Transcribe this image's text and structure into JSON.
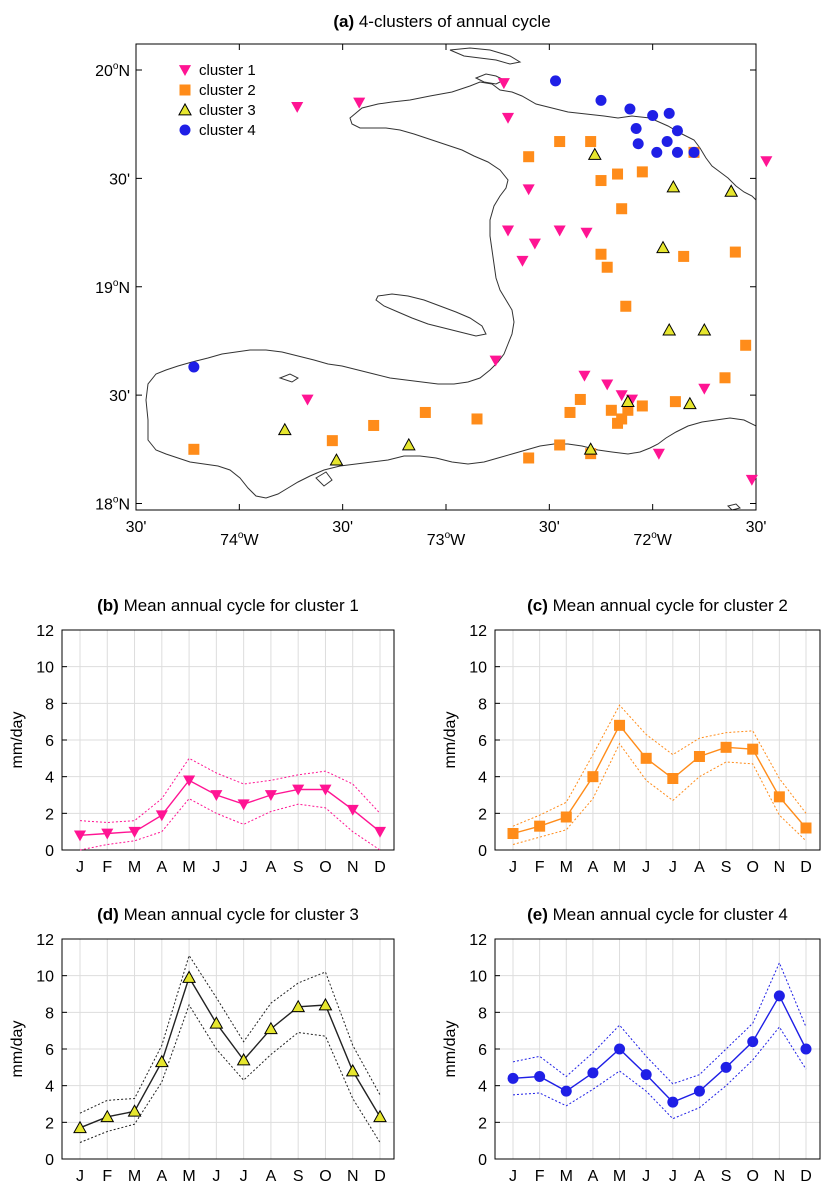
{
  "map": {
    "panel_label": "(a)",
    "title": "4-clusters of annual cycle",
    "lat_ticks": [
      {
        "lat": 20.0,
        "deg": "20",
        "suffix": "N"
      },
      {
        "lat": 19.5,
        "label": "30'"
      },
      {
        "lat": 19.0,
        "deg": "19",
        "suffix": "N"
      },
      {
        "lat": 18.5,
        "label": "30'"
      },
      {
        "lat": 18.0,
        "deg": "18",
        "suffix": "N"
      }
    ],
    "lon_ticks": [
      {
        "lon": -74.5,
        "label": "30'"
      },
      {
        "lon": -74.0,
        "deg": "74",
        "suffix": "W"
      },
      {
        "lon": -73.5,
        "label": "30'"
      },
      {
        "lon": -73.0,
        "deg": "73",
        "suffix": "W"
      },
      {
        "lon": -72.5,
        "label": "30'"
      },
      {
        "lon": -72.0,
        "deg": "72",
        "suffix": "W"
      },
      {
        "lon": -71.5,
        "label": "30'"
      }
    ],
    "legend": [
      {
        "label": "cluster 1",
        "marker": "triangle-down",
        "color": "#ff1493"
      },
      {
        "label": "cluster 2",
        "marker": "square",
        "color": "#ff8c1a"
      },
      {
        "label": "cluster 3",
        "marker": "triangle-up",
        "color": "#e6e62e"
      },
      {
        "label": "cluster 4",
        "marker": "circle",
        "color": "#1f1fe6"
      }
    ],
    "stations": {
      "cluster1": [
        [
          -73.72,
          19.83
        ],
        [
          -73.42,
          19.85
        ],
        [
          -72.72,
          19.94
        ],
        [
          -72.7,
          19.78
        ],
        [
          -72.6,
          19.45
        ],
        [
          -72.7,
          19.26
        ],
        [
          -72.63,
          19.12
        ],
        [
          -72.57,
          19.2
        ],
        [
          -72.45,
          19.26
        ],
        [
          -72.32,
          19.25
        ],
        [
          -72.76,
          18.66
        ],
        [
          -72.33,
          18.59
        ],
        [
          -72.22,
          18.55
        ],
        [
          -72.15,
          18.5
        ],
        [
          -72.1,
          18.48
        ],
        [
          -71.75,
          18.53
        ],
        [
          -71.45,
          19.58
        ],
        [
          -73.67,
          18.48
        ],
        [
          -71.97,
          18.23
        ],
        [
          -71.52,
          18.11
        ]
      ],
      "cluster2": [
        [
          -72.6,
          19.6
        ],
        [
          -72.45,
          19.67
        ],
        [
          -72.3,
          19.67
        ],
        [
          -72.25,
          19.49
        ],
        [
          -72.17,
          19.52
        ],
        [
          -72.05,
          19.53
        ],
        [
          -71.8,
          19.62
        ],
        [
          -72.15,
          19.36
        ],
        [
          -72.25,
          19.15
        ],
        [
          -72.22,
          19.09
        ],
        [
          -72.13,
          18.91
        ],
        [
          -71.85,
          19.14
        ],
        [
          -71.6,
          19.16
        ],
        [
          -71.65,
          18.58
        ],
        [
          -71.55,
          18.73
        ],
        [
          -72.05,
          18.45
        ],
        [
          -72.12,
          18.43
        ],
        [
          -72.15,
          18.39
        ],
        [
          -72.17,
          18.37
        ],
        [
          -72.2,
          18.43
        ],
        [
          -71.89,
          18.47
        ],
        [
          -72.35,
          18.48
        ],
        [
          -72.4,
          18.42
        ],
        [
          -72.85,
          18.39
        ],
        [
          -73.1,
          18.42
        ],
        [
          -73.35,
          18.36
        ],
        [
          -73.55,
          18.29
        ],
        [
          -74.22,
          18.25
        ],
        [
          -72.45,
          18.27
        ],
        [
          -72.6,
          18.21
        ],
        [
          -72.3,
          18.23
        ]
      ],
      "cluster3": [
        [
          -72.28,
          19.61
        ],
        [
          -71.9,
          19.46
        ],
        [
          -71.62,
          19.44
        ],
        [
          -71.95,
          19.18
        ],
        [
          -71.92,
          18.8
        ],
        [
          -71.75,
          18.8
        ],
        [
          -72.12,
          18.47
        ],
        [
          -71.82,
          18.46
        ],
        [
          -72.3,
          18.25
        ],
        [
          -73.78,
          18.34
        ],
        [
          -73.53,
          18.2
        ],
        [
          -73.18,
          18.27
        ]
      ],
      "cluster4": [
        [
          -72.47,
          19.95
        ],
        [
          -72.25,
          19.86
        ],
        [
          -72.11,
          19.82
        ],
        [
          -72.08,
          19.73
        ],
        [
          -72.0,
          19.79
        ],
        [
          -71.92,
          19.8
        ],
        [
          -71.88,
          19.72
        ],
        [
          -72.07,
          19.66
        ],
        [
          -71.98,
          19.62
        ],
        [
          -71.93,
          19.67
        ],
        [
          -71.88,
          19.62
        ],
        [
          -71.8,
          19.62
        ],
        [
          -74.22,
          18.63
        ]
      ]
    }
  },
  "chart_data": [
    {
      "type": "line",
      "panel_label": "(b)",
      "title": "Mean annual cycle for cluster 1",
      "ylabel": "mm/day",
      "categories": [
        "J",
        "F",
        "M",
        "A",
        "M",
        "J",
        "J",
        "A",
        "S",
        "O",
        "N",
        "D"
      ],
      "ylim": [
        0,
        12
      ],
      "yticks": [
        0,
        2,
        4,
        6,
        8,
        10,
        12
      ],
      "color": "#ff1493",
      "marker": "triangle-down",
      "grid": true,
      "series": [
        {
          "role": "mean",
          "values": [
            0.8,
            0.9,
            1.0,
            1.9,
            3.8,
            3.0,
            2.5,
            3.0,
            3.3,
            3.3,
            2.2,
            1.0
          ]
        },
        {
          "role": "upper",
          "values": [
            1.6,
            1.5,
            1.6,
            2.8,
            5.0,
            4.2,
            3.6,
            3.8,
            4.1,
            4.3,
            3.6,
            2.0
          ]
        },
        {
          "role": "lower",
          "values": [
            0.0,
            0.3,
            0.5,
            1.0,
            2.8,
            2.0,
            1.4,
            2.1,
            2.5,
            2.3,
            1.0,
            0.0
          ]
        }
      ]
    },
    {
      "type": "line",
      "panel_label": "(c)",
      "title": "Mean annual cycle for cluster 2",
      "ylabel": "mm/day",
      "categories": [
        "J",
        "F",
        "M",
        "A",
        "M",
        "J",
        "J",
        "A",
        "S",
        "O",
        "N",
        "D"
      ],
      "ylim": [
        0,
        12
      ],
      "yticks": [
        0,
        2,
        4,
        6,
        8,
        10,
        12
      ],
      "color": "#ff8c1a",
      "marker": "square",
      "grid": true,
      "series": [
        {
          "role": "mean",
          "values": [
            0.9,
            1.3,
            1.8,
            4.0,
            6.8,
            5.0,
            3.9,
            5.1,
            5.6,
            5.5,
            2.9,
            1.2
          ]
        },
        {
          "role": "upper",
          "values": [
            1.3,
            1.9,
            2.6,
            5.2,
            7.9,
            6.3,
            5.2,
            6.1,
            6.4,
            6.5,
            3.9,
            2.0
          ]
        },
        {
          "role": "lower",
          "values": [
            0.3,
            0.7,
            1.1,
            2.8,
            5.8,
            3.8,
            2.7,
            4.0,
            4.8,
            4.7,
            1.9,
            0.5
          ]
        }
      ]
    },
    {
      "type": "line",
      "panel_label": "(d)",
      "title": "Mean annual cycle for cluster 3",
      "ylabel": "mm/day",
      "categories": [
        "J",
        "F",
        "M",
        "A",
        "M",
        "J",
        "J",
        "A",
        "S",
        "O",
        "N",
        "D"
      ],
      "ylim": [
        0,
        12
      ],
      "yticks": [
        0,
        2,
        4,
        6,
        8,
        10,
        12
      ],
      "color": "#e6e62e",
      "line_color": "#222222",
      "marker": "triangle-up",
      "grid": true,
      "series": [
        {
          "role": "mean",
          "values": [
            1.7,
            2.3,
            2.6,
            5.3,
            9.9,
            7.4,
            5.4,
            7.1,
            8.3,
            8.4,
            4.8,
            2.3
          ]
        },
        {
          "role": "upper",
          "values": [
            2.5,
            3.2,
            3.3,
            6.2,
            11.1,
            8.8,
            6.4,
            8.5,
            9.6,
            10.2,
            6.2,
            3.5
          ]
        },
        {
          "role": "lower",
          "values": [
            0.9,
            1.5,
            1.9,
            4.2,
            8.4,
            6.0,
            4.3,
            5.7,
            6.9,
            6.7,
            3.3,
            0.9
          ]
        }
      ]
    },
    {
      "type": "line",
      "panel_label": "(e)",
      "title": "Mean annual cycle for cluster 4",
      "ylabel": "mm/day",
      "categories": [
        "J",
        "F",
        "M",
        "A",
        "M",
        "J",
        "J",
        "A",
        "S",
        "O",
        "N",
        "D"
      ],
      "ylim": [
        0,
        12
      ],
      "yticks": [
        0,
        2,
        4,
        6,
        8,
        10,
        12
      ],
      "color": "#1f1fe6",
      "marker": "circle",
      "grid": true,
      "series": [
        {
          "role": "mean",
          "values": [
            4.4,
            4.5,
            3.7,
            4.7,
            6.0,
            4.6,
            3.1,
            3.7,
            5.0,
            6.4,
            8.9,
            6.0
          ]
        },
        {
          "role": "upper",
          "values": [
            5.3,
            5.6,
            4.5,
            5.8,
            7.3,
            5.6,
            4.1,
            4.6,
            6.0,
            7.4,
            10.7,
            7.2
          ]
        },
        {
          "role": "lower",
          "values": [
            3.5,
            3.6,
            2.9,
            3.8,
            4.8,
            3.7,
            2.2,
            2.8,
            4.0,
            5.4,
            7.2,
            4.9
          ]
        }
      ]
    }
  ]
}
